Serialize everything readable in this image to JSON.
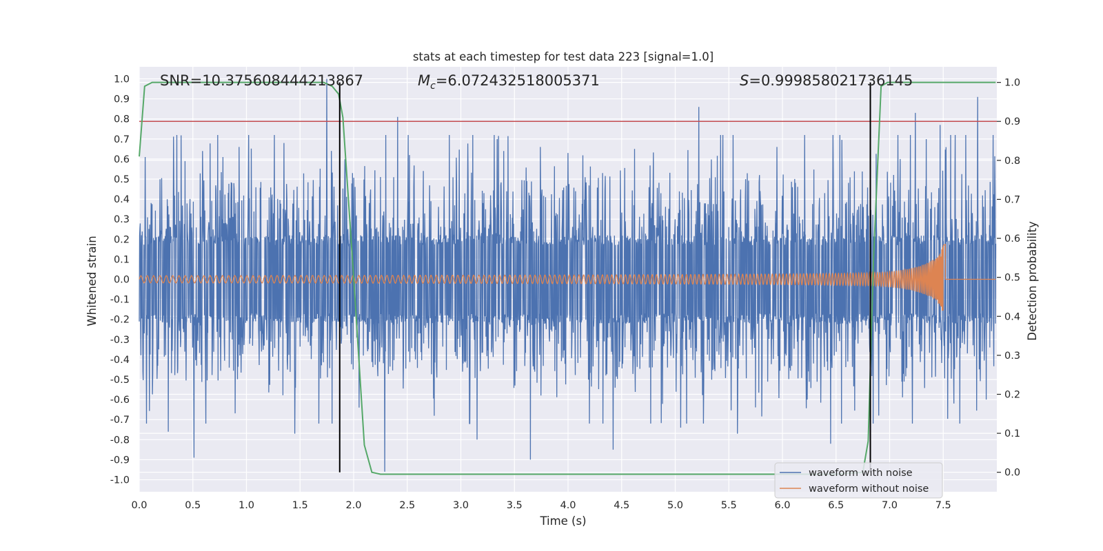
{
  "chart_data": {
    "type": "line",
    "title": "stats at each timestep for test data 223 [signal=1.0]",
    "xlabel": "Time (s)",
    "ylabel": "Whitened strain",
    "y2label": "Detection probability",
    "xlim": [
      0.0,
      8.0
    ],
    "ylim": [
      -1.06,
      1.06
    ],
    "y2lim": [
      -0.05,
      1.04
    ],
    "xticks": [
      "0.0",
      "0.5",
      "1.0",
      "1.5",
      "2.0",
      "2.5",
      "3.0",
      "3.5",
      "4.0",
      "4.5",
      "5.0",
      "5.5",
      "6.0",
      "6.5",
      "7.0",
      "7.5"
    ],
    "yticks": [
      "1.0",
      "0.9",
      "0.8",
      "0.7",
      "0.6",
      "0.5",
      "0.4",
      "0.3",
      "0.2",
      "0.1",
      "0.0",
      "-0.1",
      "-0.2",
      "-0.3",
      "-0.4",
      "-0.5",
      "-0.6",
      "-0.7",
      "-0.8",
      "-0.9",
      "-1.0"
    ],
    "y2ticks": [
      "1.0",
      "0.9",
      "0.8",
      "0.7",
      "0.6",
      "0.5",
      "0.4",
      "0.3",
      "0.2",
      "0.1",
      "0.0"
    ],
    "grid": true,
    "legend_position": "bottom-right",
    "annotations": {
      "snr": "SNR=10.375608444213867",
      "mc_symbol": "M",
      "mc_sub": "c",
      "mc_value": "=6.072432518005371",
      "s_symbol": "S",
      "s_value": "=0.999858021736145"
    },
    "series": [
      {
        "name": "waveform with noise",
        "color": "#4c72b0",
        "description_values": {
          "noise_band_abs": 0.2,
          "max": 1.0,
          "min": -0.97,
          "range": [
            0.0,
            7.99
          ]
        },
        "spikes": [
          {
            "x": 0.27,
            "y": -0.76
          },
          {
            "x": 0.51,
            "y": -0.89
          },
          {
            "x": 0.59,
            "y": 0.64
          },
          {
            "x": 0.62,
            "y": -0.72
          },
          {
            "x": 0.78,
            "y": 0.61
          },
          {
            "x": 0.93,
            "y": 0.66
          },
          {
            "x": 1.02,
            "y": 0.72
          },
          {
            "x": 1.45,
            "y": -0.77
          },
          {
            "x": 1.75,
            "y": 1.0
          },
          {
            "x": 1.92,
            "y": 0.58
          },
          {
            "x": 2.05,
            "y": -0.64
          },
          {
            "x": 2.29,
            "y": -0.96
          },
          {
            "x": 2.41,
            "y": 0.81
          },
          {
            "x": 2.52,
            "y": 0.62
          },
          {
            "x": 3.15,
            "y": -0.8
          },
          {
            "x": 3.4,
            "y": 0.64
          },
          {
            "x": 3.65,
            "y": -0.9
          },
          {
            "x": 3.74,
            "y": 0.66
          },
          {
            "x": 4.0,
            "y": 0.63
          },
          {
            "x": 4.2,
            "y": -0.72
          },
          {
            "x": 4.42,
            "y": -0.85
          },
          {
            "x": 4.62,
            "y": 0.65
          },
          {
            "x": 5.05,
            "y": -0.74
          },
          {
            "x": 5.22,
            "y": 0.86
          },
          {
            "x": 5.58,
            "y": -0.77
          },
          {
            "x": 5.95,
            "y": 0.66
          },
          {
            "x": 6.23,
            "y": -0.6
          },
          {
            "x": 6.45,
            "y": -0.82
          },
          {
            "x": 6.9,
            "y": -0.68
          },
          {
            "x": 7.1,
            "y": 0.6
          },
          {
            "x": 7.24,
            "y": 0.83
          },
          {
            "x": 7.47,
            "y": 0.77
          },
          {
            "x": 7.6,
            "y": -0.62
          },
          {
            "x": 7.82,
            "y": 0.91
          },
          {
            "x": 7.9,
            "y": -0.6
          }
        ]
      },
      {
        "name": "waveform without noise",
        "color": "#dd8452",
        "description_values": {
          "start_amplitude": 0.018,
          "peak_time": 7.5,
          "peak_max": 0.28,
          "peak_min": -0.21,
          "merger_end": 7.52,
          "after_merger": 0.0
        }
      },
      {
        "name": "detection probability",
        "axis": "right",
        "color": "#55a868",
        "x": [
          0.0,
          0.05,
          0.12,
          0.5,
          1.0,
          1.5,
          1.72,
          1.8,
          1.86,
          1.9,
          2.0,
          2.1,
          2.17,
          2.25,
          2.5,
          3.0,
          4.0,
          5.0,
          6.0,
          6.5,
          6.75,
          6.8,
          6.85,
          6.92,
          6.98,
          7.05,
          7.5,
          7.99
        ],
        "y": [
          0.81,
          0.99,
          1.0,
          1.0,
          1.0,
          1.0,
          1.0,
          0.99,
          0.97,
          0.91,
          0.5,
          0.07,
          0.0,
          -0.005,
          -0.005,
          -0.005,
          -0.005,
          -0.005,
          -0.005,
          -0.005,
          0.0,
          0.08,
          0.55,
          0.99,
          1.0,
          1.0,
          1.0,
          1.0
        ]
      }
    ],
    "reference_lines": {
      "threshold": {
        "axis": "right",
        "y": 0.9,
        "color": "#c44e52"
      },
      "vertical": [
        {
          "x": 1.87,
          "color": "#000000"
        },
        {
          "x": 6.82,
          "color": "#000000"
        }
      ]
    }
  }
}
